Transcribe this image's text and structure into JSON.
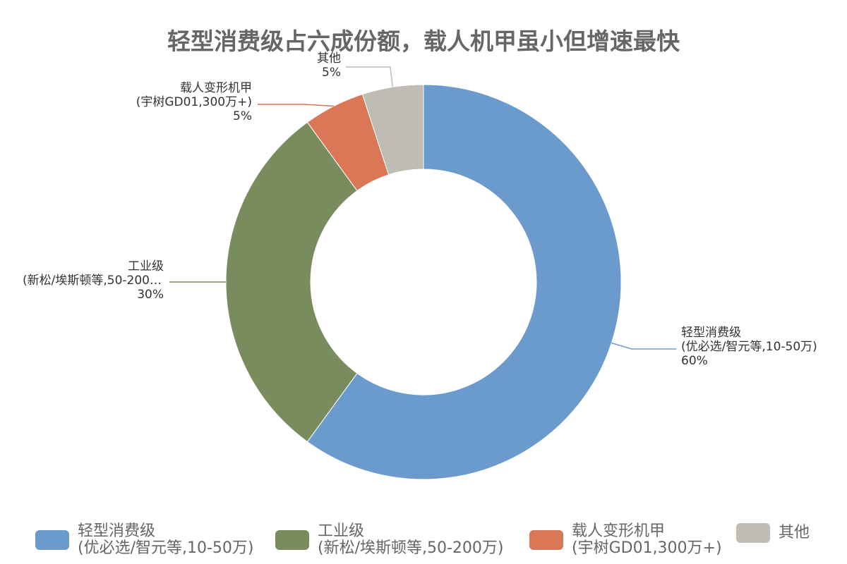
{
  "chart_data": {
    "type": "donut",
    "title": "轻型消费级占六成份额，载人机甲虽小但增速最快",
    "categories": [
      "轻型消费级\n(优必选/智元等,10-50万)",
      "工业级\n(新松/埃斯顿等,50-200万)",
      "载人变形机甲\n(宇树GD01,300万+)",
      "其他"
    ],
    "values": [
      60,
      30,
      5,
      5
    ],
    "value_labels": [
      "60%",
      "30%",
      "5%",
      "5%"
    ],
    "colors": [
      "#6a9bcc",
      "#788c5d",
      "#d97757",
      "#bfbcb4"
    ],
    "legend": "bottom"
  }
}
